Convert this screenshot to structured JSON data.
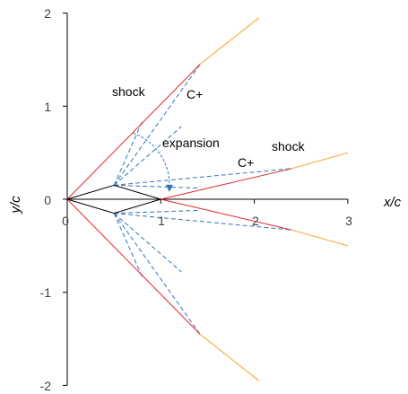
{
  "chart_data": {
    "type": "diagram-plot",
    "xlabel": "x/c",
    "ylabel": "y/c",
    "xlim": [
      0,
      3
    ],
    "ylim": [
      -2,
      2
    ],
    "xticks": [
      "0",
      "1",
      "2",
      "3"
    ],
    "yticks": [
      "2",
      "1",
      "0",
      "-1",
      "-2"
    ],
    "annotations": [
      "shock",
      "C+",
      "expansion",
      "shock",
      "C+"
    ],
    "colors": {
      "shock": "#e8232a",
      "transmitted": "#f5a623",
      "airfoil": "#000000",
      "characteristic": "#2e75b6"
    },
    "series": [
      {
        "kind": "airfoil",
        "points": [
          [
            0,
            0
          ],
          [
            0.5,
            0.15
          ],
          [
            1,
            0
          ],
          [
            0.5,
            -0.15
          ],
          [
            0,
            0
          ]
        ]
      },
      {
        "kind": "shock",
        "points": [
          [
            0,
            0
          ],
          [
            1.42,
            1.45
          ]
        ]
      },
      {
        "kind": "shock",
        "points": [
          [
            0,
            0
          ],
          [
            1.42,
            -1.45
          ]
        ]
      },
      {
        "kind": "shock",
        "points": [
          [
            1,
            0
          ],
          [
            2.4,
            0.33
          ]
        ]
      },
      {
        "kind": "shock",
        "points": [
          [
            1,
            0
          ],
          [
            2.4,
            -0.33
          ]
        ]
      },
      {
        "kind": "transmitted",
        "points": [
          [
            1.42,
            1.45
          ],
          [
            2.05,
            1.95
          ]
        ]
      },
      {
        "kind": "transmitted",
        "points": [
          [
            1.42,
            -1.45
          ],
          [
            2.05,
            -1.95
          ]
        ]
      },
      {
        "kind": "transmitted",
        "points": [
          [
            2.4,
            0.33
          ],
          [
            3,
            0.5
          ]
        ]
      },
      {
        "kind": "transmitted",
        "points": [
          [
            2.4,
            -0.33
          ],
          [
            3,
            -0.5
          ]
        ]
      },
      {
        "kind": "characteristic",
        "points": [
          [
            0.5,
            0.15
          ],
          [
            0.8,
            0.83
          ]
        ]
      },
      {
        "kind": "characteristic",
        "points": [
          [
            0.5,
            0.15
          ],
          [
            1.42,
            1.45
          ]
        ]
      },
      {
        "kind": "characteristic",
        "points": [
          [
            0.5,
            0.15
          ],
          [
            1.22,
            0.78
          ]
        ]
      },
      {
        "kind": "characteristic",
        "points": [
          [
            0.5,
            0.15
          ],
          [
            2.4,
            0.33
          ]
        ]
      },
      {
        "kind": "characteristic",
        "points": [
          [
            0.5,
            0.15
          ],
          [
            1.42,
            0.12
          ]
        ]
      },
      {
        "kind": "characteristic",
        "points": [
          [
            0.5,
            -0.15
          ],
          [
            0.8,
            -0.83
          ]
        ]
      },
      {
        "kind": "characteristic",
        "points": [
          [
            0.5,
            -0.15
          ],
          [
            1.42,
            -1.45
          ]
        ]
      },
      {
        "kind": "characteristic",
        "points": [
          [
            0.5,
            -0.15
          ],
          [
            1.22,
            -0.78
          ]
        ]
      },
      {
        "kind": "characteristic",
        "points": [
          [
            0.5,
            -0.15
          ],
          [
            2.4,
            -0.33
          ]
        ]
      },
      {
        "kind": "characteristic",
        "points": [
          [
            0.5,
            -0.15
          ],
          [
            1.42,
            -0.12
          ]
        ]
      }
    ]
  }
}
